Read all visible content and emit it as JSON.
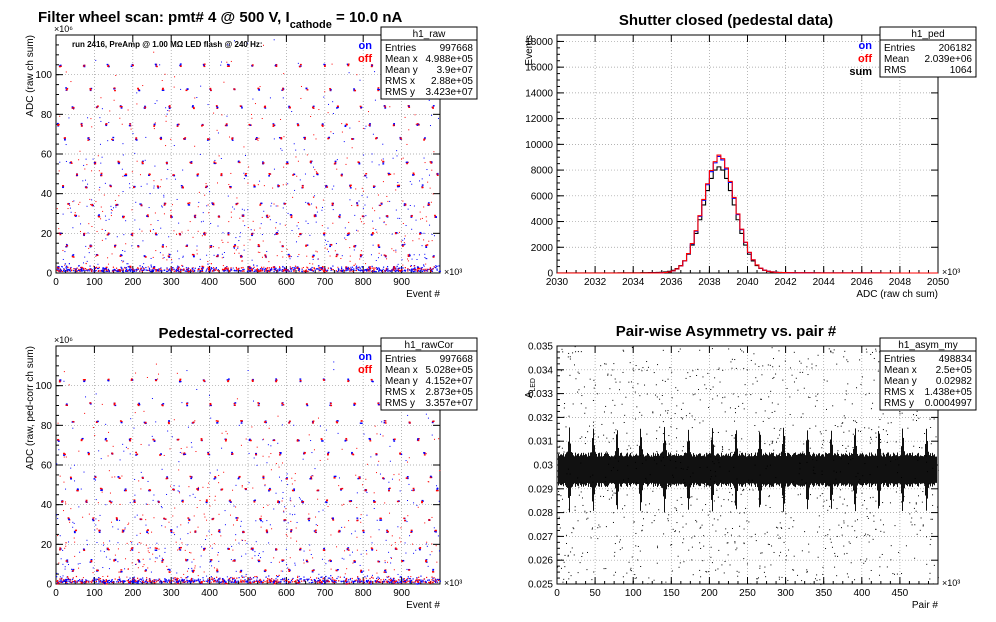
{
  "chart_data": [
    {
      "id": "raw",
      "type": "scatter",
      "title_parts": {
        "a": "Filter wheel scan: pmt#   4 @   500 V, I",
        "sub": "cathode",
        "b": " = 10.0 nA"
      },
      "subtitle": "run 2416, PreAmp @ 1.00 MΩ  LED flash @  240 Hz:",
      "xlabel": "Event #",
      "ylabel": "ADC (raw ch sum)",
      "x_exponent": "×10³",
      "y_exponent": "×10⁶",
      "xlim": [
        0,
        1000
      ],
      "ylim": [
        0,
        120
      ],
      "x_ticks": [
        0,
        100,
        200,
        300,
        400,
        500,
        600,
        700,
        800,
        900
      ],
      "y_ticks": [
        0,
        20,
        40,
        60,
        80,
        100
      ],
      "grid": true,
      "levels": [
        3,
        9,
        14,
        20,
        29,
        35,
        44,
        50,
        56,
        68,
        75,
        84,
        93,
        105
      ],
      "legend": [
        {
          "name": "on",
          "color": "#0000ff"
        },
        {
          "name": "off",
          "color": "#ff0000"
        }
      ],
      "stats": {
        "name": "h1_raw",
        "rows": [
          [
            "Entries",
            "997668"
          ],
          [
            "Mean x",
            "4.988e+05"
          ],
          [
            "Mean y",
            "3.9e+07"
          ],
          [
            "RMS x",
            "2.88e+05"
          ],
          [
            "RMS y",
            "3.423e+07"
          ]
        ]
      }
    },
    {
      "id": "ped",
      "type": "histogram",
      "title": "Shutter closed (pedestal data)",
      "xlabel": "ADC (raw ch sum)",
      "ylabel": "Events",
      "x_exponent": "×10³",
      "xlim": [
        2030,
        2050
      ],
      "ylim": [
        0,
        18500
      ],
      "x_ticks": [
        2030,
        2032,
        2034,
        2036,
        2038,
        2040,
        2042,
        2044,
        2046,
        2048,
        2050
      ],
      "y_ticks": [
        0,
        2000,
        4000,
        6000,
        8000,
        10000,
        12000,
        14000,
        16000,
        18000
      ],
      "grid": true,
      "series": [
        {
          "name": "sum",
          "color": "#000000",
          "mean": 2038.5,
          "sigma": 0.85,
          "peak": 8000
        },
        {
          "name": "on",
          "color": "#0000ff",
          "mean": 2038.5,
          "sigma": 0.85,
          "peak": 8800
        },
        {
          "name": "off",
          "color": "#ff0000",
          "mean": 2038.5,
          "sigma": 0.85,
          "peak": 8900
        }
      ],
      "legend": [
        {
          "name": "on",
          "color": "#0000ff"
        },
        {
          "name": "off",
          "color": "#ff0000"
        },
        {
          "name": "sum",
          "color": "#000000"
        }
      ],
      "stats": {
        "name": "h1_ped",
        "rows": [
          [
            "Entries",
            "206182"
          ],
          [
            "Mean",
            "2.039e+06"
          ],
          [
            "RMS",
            "1064"
          ]
        ]
      }
    },
    {
      "id": "cor",
      "type": "scatter",
      "title": "Pedestal-corrected",
      "xlabel": "Event #",
      "ylabel": "ADC (raw, ped-corr ch sum)",
      "x_exponent": "×10³",
      "y_exponent": "×10⁶",
      "xlim": [
        0,
        1000
      ],
      "ylim": [
        0,
        120
      ],
      "x_ticks": [
        0,
        100,
        200,
        300,
        400,
        500,
        600,
        700,
        800,
        900
      ],
      "y_ticks": [
        0,
        20,
        40,
        60,
        80,
        100
      ],
      "grid": true,
      "levels": [
        1,
        7,
        12,
        18,
        27,
        33,
        42,
        48,
        54,
        66,
        73,
        82,
        91,
        103
      ],
      "legend": [
        {
          "name": "on",
          "color": "#0000ff"
        },
        {
          "name": "off",
          "color": "#ff0000"
        }
      ],
      "stats": {
        "name": "h1_rawCor",
        "rows": [
          [
            "Entries",
            "997668"
          ],
          [
            "Mean x",
            "5.028e+05"
          ],
          [
            "Mean y",
            "4.152e+07"
          ],
          [
            "RMS x",
            "2.873e+05"
          ],
          [
            "RMS y",
            "3.357e+07"
          ]
        ]
      }
    },
    {
      "id": "asym",
      "type": "scatter",
      "title": "Pair-wise Asymmetry vs. pair #",
      "xlabel": "Pair #",
      "ylabel": "A",
      "ylabel_sub": "LED",
      "x_exponent": "×10³",
      "xlim": [
        0,
        500
      ],
      "ylim": [
        0.025,
        0.035
      ],
      "x_ticks": [
        0,
        50,
        100,
        150,
        200,
        250,
        300,
        350,
        400,
        450
      ],
      "y_ticks": [
        0.025,
        0.026,
        0.027,
        0.028,
        0.029,
        0.03,
        0.031,
        0.032,
        0.033,
        0.034,
        0.035
      ],
      "y_tick_labels": [
        "0.025",
        "0.026",
        "0.027",
        "0.028",
        "0.029",
        "0.03",
        "0.031",
        "0.032",
        "0.033",
        "0.034",
        "0.035"
      ],
      "grid": true,
      "band_center": 0.0298,
      "stats": {
        "name": "h1_asym_my",
        "rows": [
          [
            "Entries",
            "498834"
          ],
          [
            "Mean x",
            "2.5e+05"
          ],
          [
            "Mean y",
            "0.02982"
          ],
          [
            "RMS x",
            "1.438e+05"
          ],
          [
            "RMS y",
            "0.0004997"
          ]
        ]
      }
    }
  ]
}
